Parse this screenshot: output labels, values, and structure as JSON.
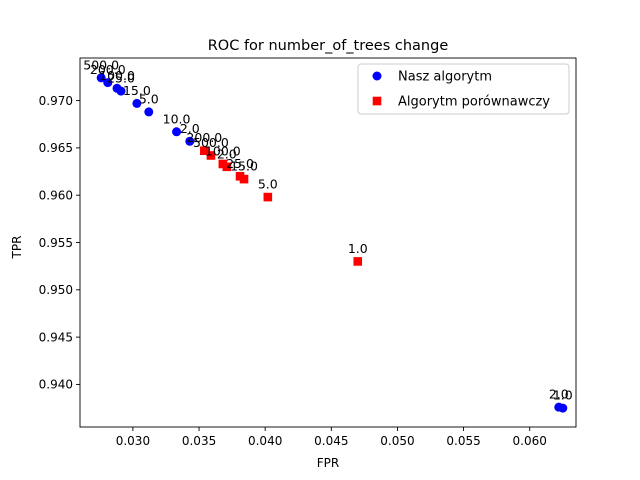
{
  "chart_data": {
    "type": "scatter",
    "title": "ROC for number_of_trees change",
    "xlabel": "FPR",
    "ylabel": "TPR",
    "xlim": [
      0.026,
      0.0635
    ],
    "ylim": [
      0.9355,
      0.9745
    ],
    "x_ticks": [
      0.03,
      0.035,
      0.04,
      0.045,
      0.05,
      0.055,
      0.06
    ],
    "x_tick_labels": [
      "0.030",
      "0.035",
      "0.040",
      "0.045",
      "0.050",
      "0.055",
      "0.060"
    ],
    "y_ticks": [
      0.94,
      0.945,
      0.95,
      0.955,
      0.96,
      0.965,
      0.97
    ],
    "y_tick_labels": [
      "0.940",
      "0.945",
      "0.950",
      "0.955",
      "0.960",
      "0.965",
      "0.970"
    ],
    "grid": false,
    "legend_position": "top-right",
    "series": [
      {
        "name": "Nasz algorytm",
        "marker": "circle",
        "color": "#0000ff",
        "points": [
          {
            "x": 0.0276,
            "y": 0.9724,
            "label": "500.0"
          },
          {
            "x": 0.0281,
            "y": 0.9719,
            "label": "200.0"
          },
          {
            "x": 0.0288,
            "y": 0.9713,
            "label": "100.0"
          },
          {
            "x": 0.0291,
            "y": 0.971,
            "label": "25.0"
          },
          {
            "x": 0.0303,
            "y": 0.9697,
            "label": "15.0"
          },
          {
            "x": 0.0312,
            "y": 0.9688,
            "label": "5.0"
          },
          {
            "x": 0.0333,
            "y": 0.9667,
            "label": "10.0"
          },
          {
            "x": 0.0343,
            "y": 0.9657,
            "label": "2.0"
          },
          {
            "x": 0.0622,
            "y": 0.9376,
            "label": "2.0"
          },
          {
            "x": 0.0625,
            "y": 0.9375,
            "label": "1.0"
          }
        ]
      },
      {
        "name": "Algorytm porównawczy",
        "marker": "square",
        "color": "#ff0000",
        "points": [
          {
            "x": 0.0354,
            "y": 0.9647,
            "label": "200.0"
          },
          {
            "x": 0.0359,
            "y": 0.9642,
            "label": "500.0"
          },
          {
            "x": 0.0368,
            "y": 0.9633,
            "label": "100.0"
          },
          {
            "x": 0.0371,
            "y": 0.963,
            "label": "2.0"
          },
          {
            "x": 0.0381,
            "y": 0.962,
            "label": "25.0"
          },
          {
            "x": 0.0384,
            "y": 0.9617,
            "label": "15.0"
          },
          {
            "x": 0.0402,
            "y": 0.9598,
            "label": "5.0"
          },
          {
            "x": 0.047,
            "y": 0.953,
            "label": "1.0"
          }
        ]
      }
    ]
  }
}
